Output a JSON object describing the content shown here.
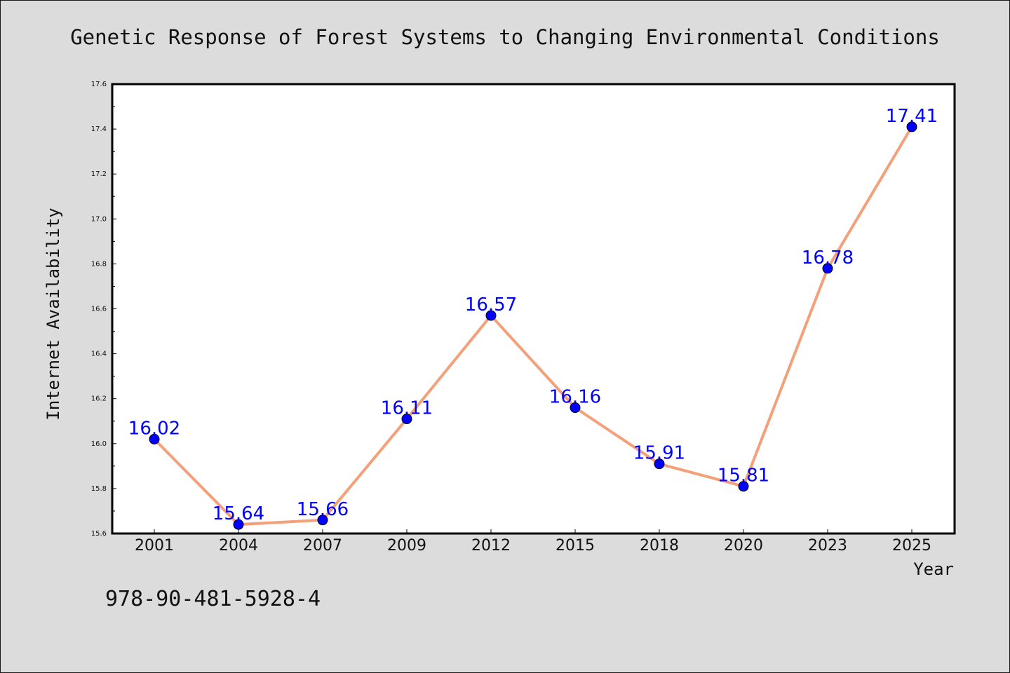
{
  "chart_data": {
    "type": "line",
    "title": "Genetic Response of Forest Systems to Changing Environmental Conditions",
    "xlabel": "Year",
    "ylabel": "Internet Availability",
    "categories": [
      "2001",
      "2004",
      "2007",
      "2009",
      "2012",
      "2015",
      "2018",
      "2020",
      "2023",
      "2025"
    ],
    "series": [
      {
        "values": [
          16.02,
          15.64,
          15.66,
          16.11,
          16.57,
          16.16,
          15.91,
          15.81,
          16.78,
          17.41
        ],
        "labels": [
          "16.02",
          "15.64",
          "15.66",
          "16.11",
          "16.57",
          "16.16",
          "15.91",
          "15.81",
          "16.78",
          "17.41"
        ],
        "line_color": "#f4a07a",
        "marker_color": "#0000ff"
      }
    ],
    "ylim": [
      15.6,
      17.6
    ],
    "yticks": [
      "15.6",
      "15.8",
      "16.0",
      "16.2",
      "16.4",
      "16.6",
      "16.8",
      "17.0",
      "17.2",
      "17.4",
      "17.6"
    ],
    "grid": false,
    "legend": "none"
  },
  "footer": {
    "isbn": "978-90-481-5928-4"
  },
  "colors": {
    "background": "#dcdcdc",
    "plot_background": "#ffffff",
    "data_label": "#0000ff"
  }
}
